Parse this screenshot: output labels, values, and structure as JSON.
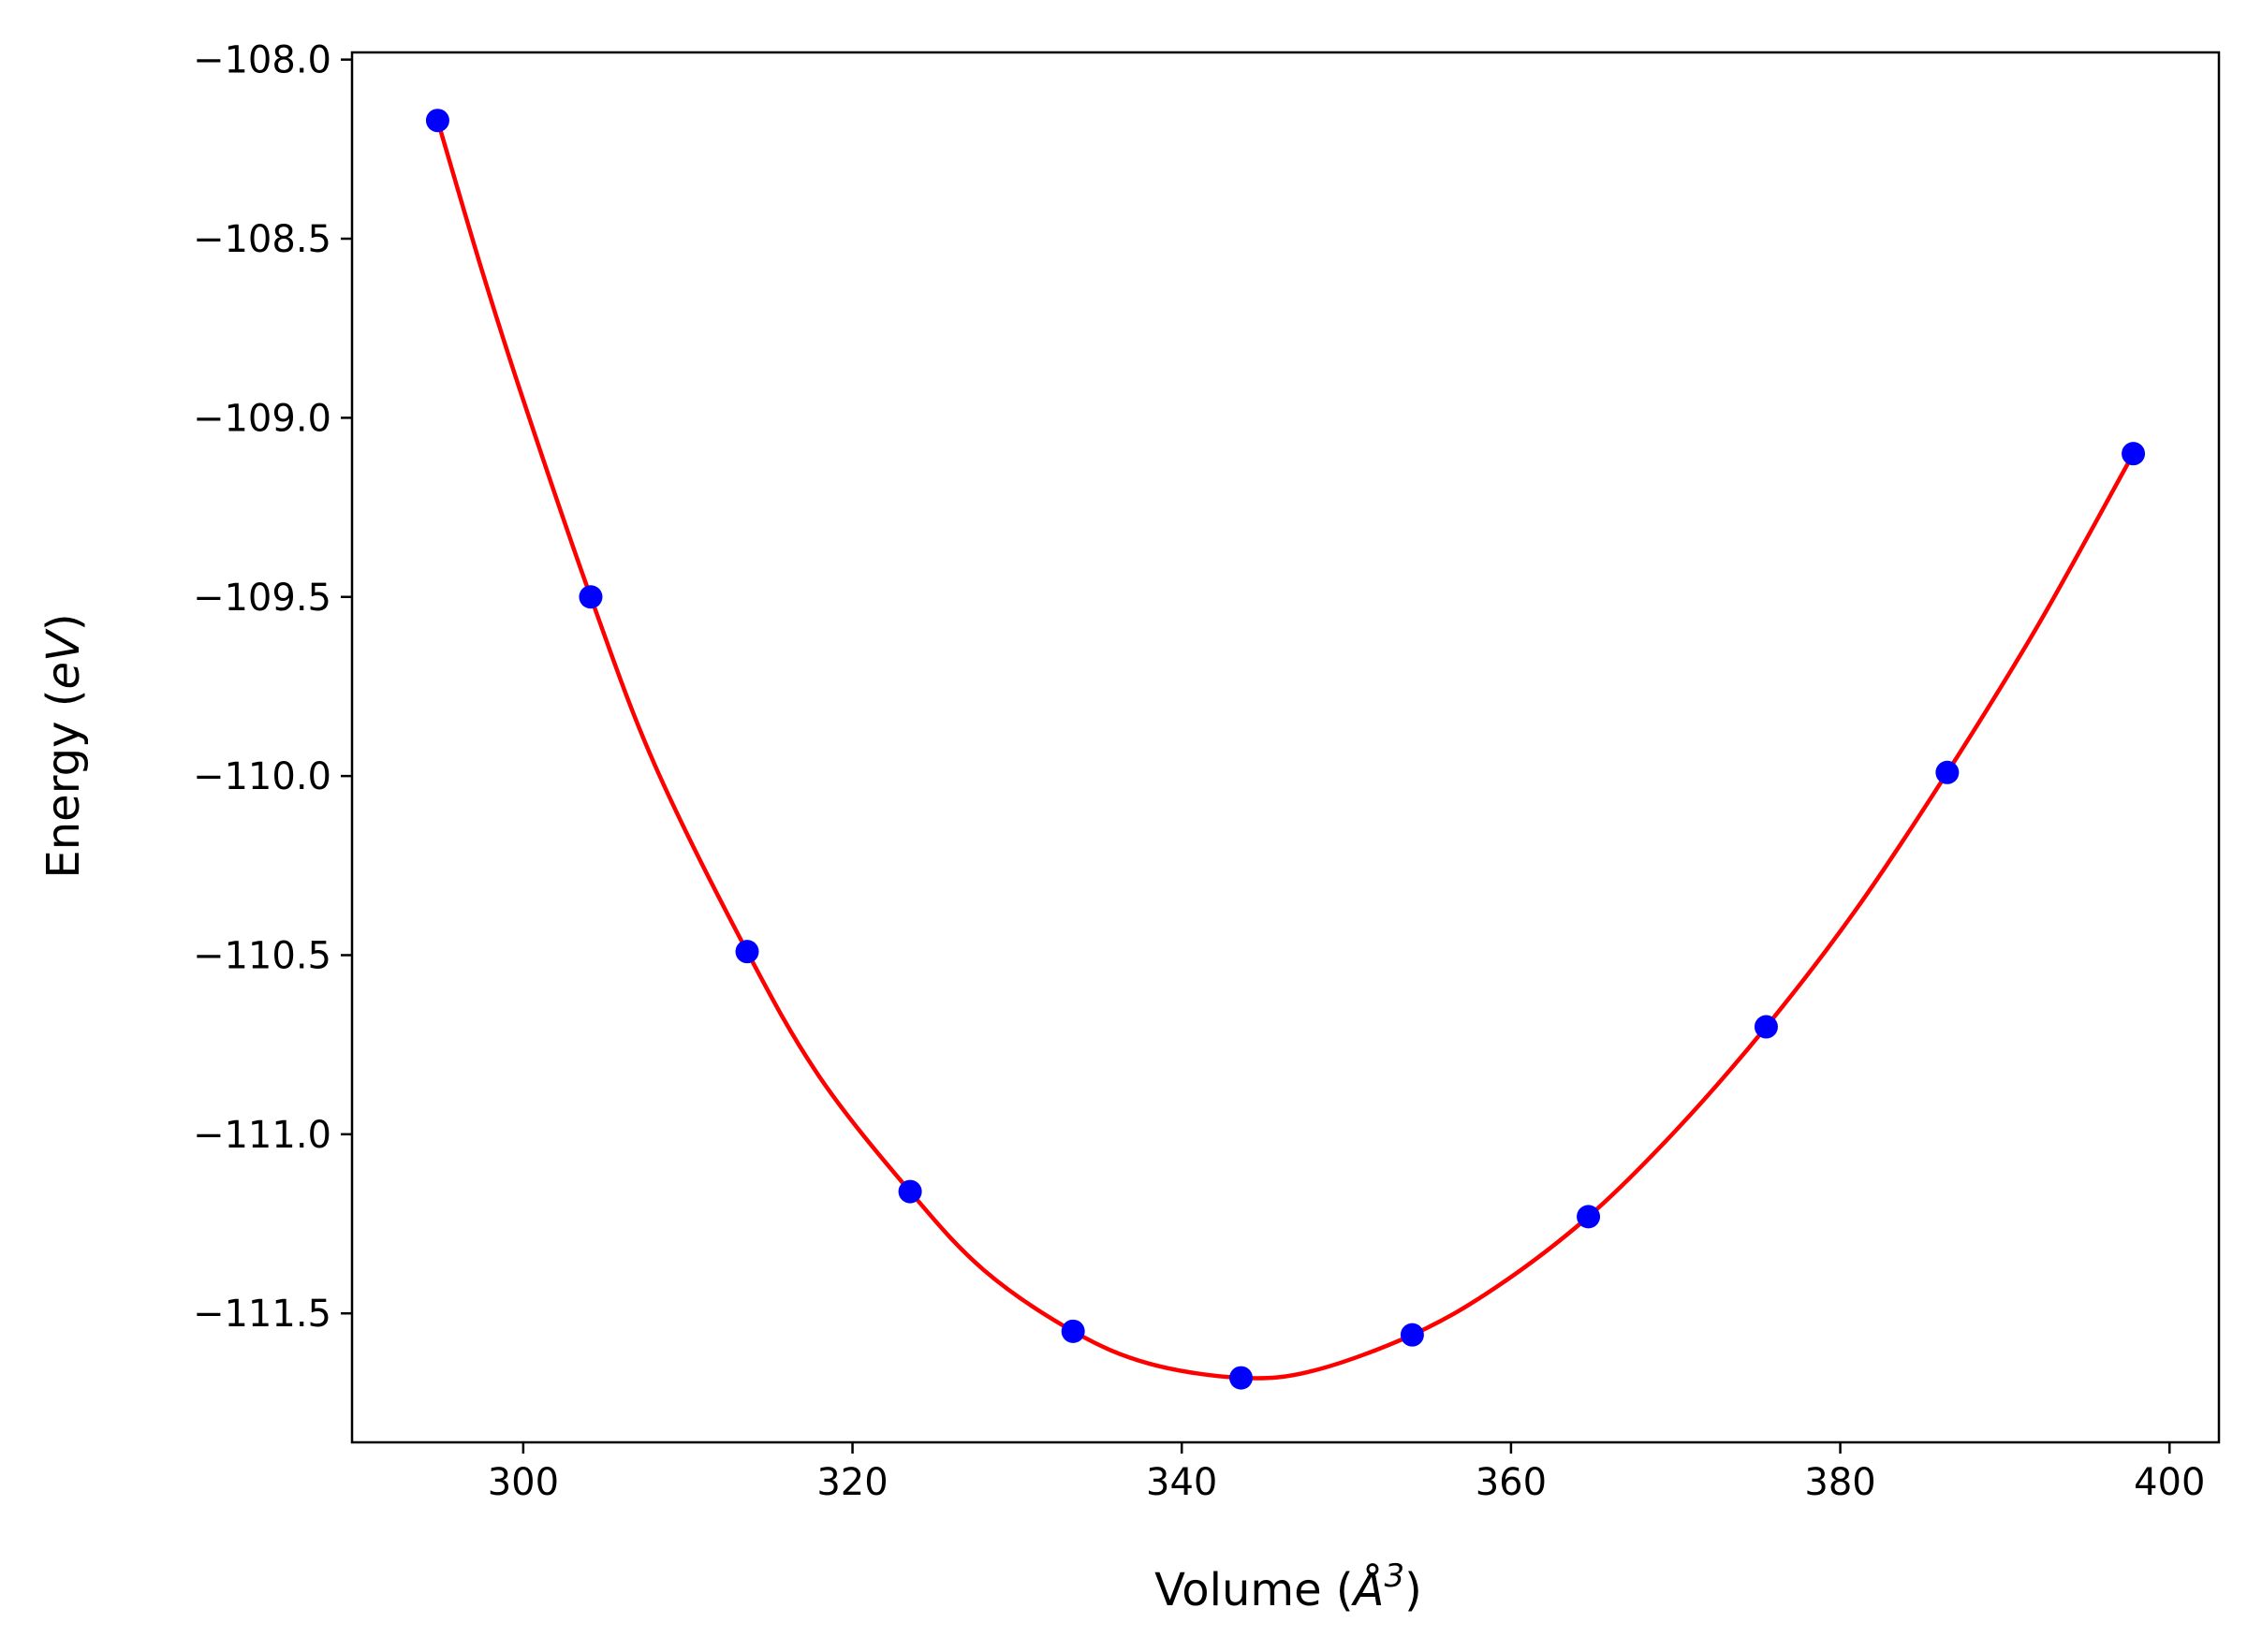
{
  "chart_data": {
    "type": "scatter",
    "title": "",
    "xlabel": {
      "prefix": "Volume (",
      "symbol": "Å",
      "sup": "3",
      "suffix": ")"
    },
    "ylabel": {
      "prefix": "Energy (",
      "unit": "eV",
      "suffix": ")"
    },
    "xlim": [
      289.6,
      403.0
    ],
    "ylim": [
      -111.86,
      -107.98
    ],
    "xticks": [
      300,
      320,
      340,
      360,
      380,
      400
    ],
    "xtick_labels": [
      "300",
      "320",
      "340",
      "360",
      "380",
      "400"
    ],
    "yticks": [
      -108.0,
      -108.5,
      -109.0,
      -109.5,
      -110.0,
      -110.5,
      -111.0,
      -111.5
    ],
    "ytick_labels": [
      "−108.0",
      "−108.5",
      "−109.0",
      "−109.5",
      "−110.0",
      "−110.5",
      "−111.0",
      "−111.5"
    ],
    "grid": false,
    "series": [
      {
        "kind": "points",
        "color": "#0000ff",
        "x": [
          294.8,
          304.1,
          313.6,
          323.5,
          333.4,
          343.6,
          354.0,
          364.7,
          375.5,
          386.5,
          397.8
        ],
        "y": [
          -108.17,
          -109.5,
          -110.49,
          -111.16,
          -111.55,
          -111.68,
          -111.56,
          -111.23,
          -110.7,
          -109.99,
          -109.1
        ]
      },
      {
        "kind": "fit-curve",
        "color": "#ff0000",
        "x": [
          294.8,
          297.5,
          300.0,
          304.1,
          308.0,
          313.6,
          318.0,
          323.5,
          328.0,
          333.4,
          338.0,
          343.6,
          348.0,
          354.0,
          359.0,
          364.7,
          370.0,
          375.5,
          381.0,
          386.5,
          392.0,
          397.8
        ],
        "y": [
          -108.17,
          -108.59,
          -108.95,
          -109.5,
          -109.97,
          -110.49,
          -110.84,
          -111.16,
          -111.38,
          -111.55,
          -111.64,
          -111.68,
          -111.66,
          -111.56,
          -111.43,
          -111.23,
          -110.99,
          -110.7,
          -110.37,
          -109.99,
          -109.58,
          -109.1
        ]
      }
    ]
  }
}
